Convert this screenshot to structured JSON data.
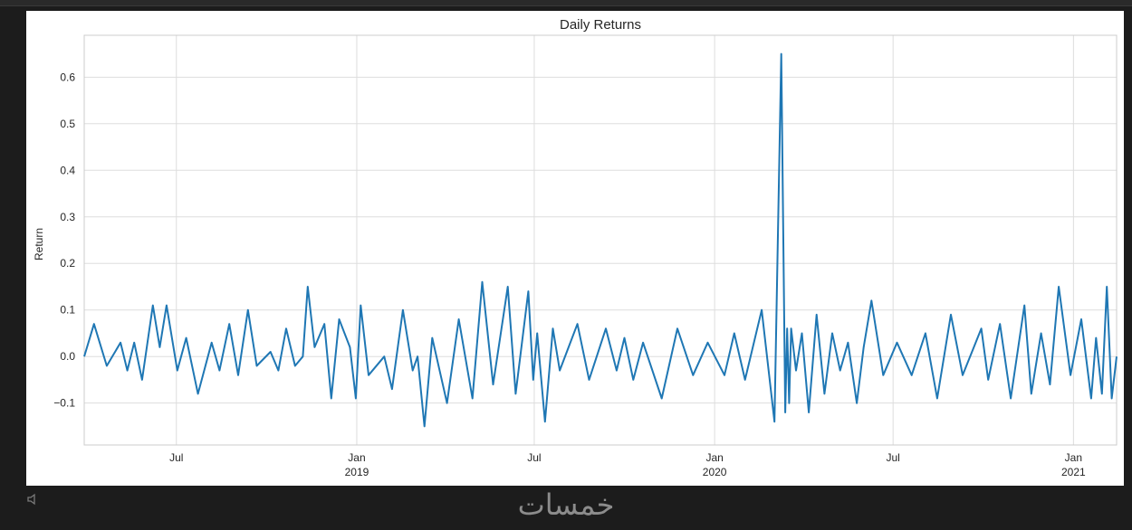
{
  "watermark": {
    "text": "خمسات"
  },
  "chart_data": {
    "type": "line",
    "title": "Daily Returns",
    "xlabel": "",
    "ylabel": "Return",
    "xlim": [
      "2018-03-29",
      "2021-02-14"
    ],
    "ylim": [
      -0.19,
      0.69
    ],
    "grid": true,
    "legend": "none",
    "color": "#1f77b4",
    "yticks": [
      -0.1,
      0.0,
      0.1,
      0.2,
      0.3,
      0.4,
      0.5,
      0.6
    ],
    "ytick_labels": [
      "−0.1",
      "0.0",
      "0.1",
      "0.2",
      "0.3",
      "0.4",
      "0.5",
      "0.6"
    ],
    "xticks": [
      {
        "date": "2018-07-01",
        "label": "Jul",
        "sub": ""
      },
      {
        "date": "2019-01-01",
        "label": "Jan",
        "sub": "2019"
      },
      {
        "date": "2019-07-01",
        "label": "Jul",
        "sub": ""
      },
      {
        "date": "2020-01-01",
        "label": "Jan",
        "sub": "2020"
      },
      {
        "date": "2020-07-01",
        "label": "Jul",
        "sub": ""
      },
      {
        "date": "2021-01-01",
        "label": "Jan",
        "sub": "2021"
      }
    ],
    "series": [
      {
        "x": [
          "2018-03-29",
          "2018-04-08",
          "2018-04-21",
          "2018-05-05",
          "2018-05-12",
          "2018-05-19",
          "2018-05-27",
          "2018-06-07",
          "2018-06-14",
          "2018-06-21",
          "2018-07-02",
          "2018-07-11",
          "2018-07-23",
          "2018-08-06",
          "2018-08-14",
          "2018-08-24",
          "2018-09-02",
          "2018-09-12",
          "2018-09-21",
          "2018-10-05",
          "2018-10-13",
          "2018-10-21",
          "2018-10-30",
          "2018-11-07",
          "2018-11-12",
          "2018-11-19",
          "2018-11-29",
          "2018-12-06",
          "2018-12-14",
          "2018-12-25",
          "2018-12-31",
          "2019-01-05",
          "2019-01-13",
          "2019-01-29",
          "2019-02-06",
          "2019-02-17",
          "2019-02-27",
          "2019-03-04",
          "2019-03-11",
          "2019-03-19",
          "2019-04-03",
          "2019-04-15",
          "2019-04-29",
          "2019-05-09",
          "2019-05-20",
          "2019-06-04",
          "2019-06-12",
          "2019-06-25",
          "2019-06-30",
          "2019-07-04",
          "2019-07-12",
          "2019-07-20",
          "2019-07-27",
          "2019-08-14",
          "2019-08-26",
          "2019-09-12",
          "2019-09-23",
          "2019-10-01",
          "2019-10-10",
          "2019-10-20",
          "2019-11-08",
          "2019-11-24",
          "2019-12-10",
          "2019-12-25",
          "2020-01-11",
          "2020-01-21",
          "2020-02-01",
          "2020-02-18",
          "2020-03-02",
          "2020-03-09",
          "2020-03-13",
          "2020-03-15",
          "2020-03-17",
          "2020-03-19",
          "2020-03-24",
          "2020-03-30",
          "2020-04-06",
          "2020-04-14",
          "2020-04-22",
          "2020-04-30",
          "2020-05-08",
          "2020-05-16",
          "2020-05-25",
          "2020-06-01",
          "2020-06-09",
          "2020-06-21",
          "2020-07-05",
          "2020-07-20",
          "2020-08-03",
          "2020-08-15",
          "2020-08-29",
          "2020-09-10",
          "2020-09-29",
          "2020-10-06",
          "2020-10-18",
          "2020-10-29",
          "2020-11-12",
          "2020-11-19",
          "2020-11-29",
          "2020-12-08",
          "2020-12-17",
          "2020-12-29",
          "2021-01-09",
          "2021-01-19",
          "2021-01-24",
          "2021-01-30",
          "2021-02-04",
          "2021-02-09",
          "2021-02-14"
        ],
        "values": [
          0.0,
          0.07,
          -0.02,
          0.03,
          -0.03,
          0.03,
          -0.05,
          0.11,
          0.02,
          0.11,
          -0.03,
          0.04,
          -0.08,
          0.03,
          -0.03,
          0.07,
          -0.04,
          0.1,
          -0.02,
          0.01,
          -0.03,
          0.06,
          -0.02,
          0.0,
          0.15,
          0.02,
          0.07,
          -0.09,
          0.08,
          0.02,
          -0.09,
          0.11,
          -0.04,
          0.0,
          -0.07,
          0.1,
          -0.03,
          0.0,
          -0.15,
          0.04,
          -0.1,
          0.08,
          -0.09,
          0.16,
          -0.06,
          0.15,
          -0.08,
          0.14,
          -0.05,
          0.05,
          -0.14,
          0.06,
          -0.03,
          0.07,
          -0.05,
          0.06,
          -0.03,
          0.04,
          -0.05,
          0.03,
          -0.09,
          0.06,
          -0.04,
          0.03,
          -0.04,
          0.05,
          -0.05,
          0.1,
          -0.14,
          0.65,
          -0.12,
          0.06,
          -0.1,
          0.06,
          -0.03,
          0.05,
          -0.12,
          0.09,
          -0.08,
          0.05,
          -0.03,
          0.03,
          -0.1,
          0.02,
          0.12,
          -0.04,
          0.03,
          -0.04,
          0.05,
          -0.09,
          0.09,
          -0.04,
          0.06,
          -0.05,
          0.07,
          -0.09,
          0.11,
          -0.08,
          0.05,
          -0.06,
          0.15,
          -0.04,
          0.08,
          -0.09,
          0.04,
          -0.08,
          0.15,
          -0.09,
          0.0
        ]
      }
    ]
  }
}
